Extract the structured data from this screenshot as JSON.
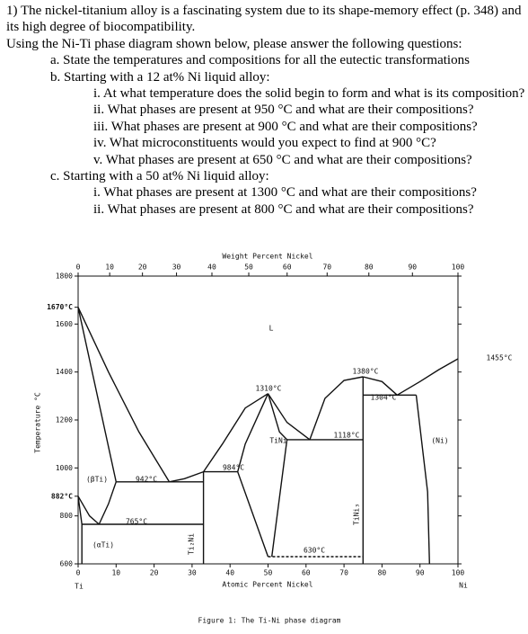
{
  "question": {
    "intro": "1) The nickel-titanium alloy is a fascinating system due to its shape-memory effect (p. 348) and its high degree of biocompatibility.",
    "instruction": "Using the Ni-Ti phase diagram shown below, please answer the following questions:",
    "parts": [
      {
        "text": "a. State the temperatures and compositions for all the eutectic transformations",
        "subparts": []
      },
      {
        "text": "b. Starting with a 12 at% Ni liquid alloy:",
        "subparts": [
          "i. At what temperature does the solid begin to form and what is its composition?",
          "ii. What phases are present at 950 °C and what are their compositions?",
          "iii. What phases are present at 900 °C and what are their compositions?",
          "iv. What microconstituents would you expect to find at 900 °C?",
          "v. What phases are present at 650 °C and what are their compositions?"
        ]
      },
      {
        "text": "c. Starting with a 50 at% Ni liquid alloy:",
        "subparts": [
          "i. What phases are present at 1300 °C and what are their compositions?",
          "ii. What phases are present at 800 °C and what are their compositions?"
        ]
      }
    ]
  },
  "figure": {
    "top_axis_label": "Weight Percent Nickel",
    "x_label": "Atomic Percent Nickel",
    "y_label": "Temperature °C",
    "axis_ends": [
      "Ti",
      "Ni"
    ],
    "caption": "Figure 1: The Ti-Ni phase diagram",
    "xlim": [
      0,
      100
    ],
    "ylim": [
      600,
      1800
    ],
    "xticks": [
      0,
      10,
      20,
      30,
      40,
      50,
      60,
      70,
      80,
      90,
      100
    ],
    "top_ticks": [
      0,
      10,
      20,
      30,
      40,
      50,
      60,
      70,
      80,
      90,
      100
    ],
    "yticks": [
      600,
      800,
      {
        "value": 882,
        "label": "882°C"
      },
      1000,
      1200,
      1400,
      1600,
      {
        "value": 1670,
        "label": "1670°C"
      },
      1800
    ],
    "labels": [
      "L",
      "(βTi)",
      "942°C",
      "765°C",
      "(αTi)",
      "Ti₂Ni",
      "984°C",
      "1310°C",
      "TiNi",
      "1118°C",
      "1380°C",
      "TiNi₃",
      "1304°C",
      "1455°C",
      "(Ni)",
      "630°C"
    ],
    "boundaries": [
      {
        "x": [
          0,
          8,
          16,
          24
        ],
        "y": [
          1670,
          1400,
          1150,
          942
        ]
      },
      {
        "x": [
          24,
          28,
          33
        ],
        "y": [
          942,
          955,
          984
        ]
      },
      {
        "x": [
          33,
          38,
          44,
          50
        ],
        "y": [
          984,
          1100,
          1250,
          1310
        ]
      },
      {
        "x": [
          50,
          55,
          61
        ],
        "y": [
          1310,
          1190,
          1118
        ]
      },
      {
        "x": [
          61,
          65,
          70,
          75
        ],
        "y": [
          1118,
          1290,
          1365,
          1380
        ]
      },
      {
        "x": [
          75,
          80,
          84
        ],
        "y": [
          1380,
          1360,
          1304
        ]
      },
      {
        "x": [
          84,
          90,
          95,
          100
        ],
        "y": [
          1304,
          1360,
          1410,
          1455
        ]
      },
      {
        "x": [
          0,
          10
        ],
        "y": [
          1670,
          942
        ]
      },
      {
        "x": [
          0,
          3,
          5.5
        ],
        "y": [
          882,
          800,
          765
        ]
      },
      {
        "x": [
          0,
          1,
          1
        ],
        "y": [
          882,
          765,
          600
        ]
      },
      {
        "x": [
          10,
          8,
          5.5
        ],
        "y": [
          942,
          850,
          765
        ]
      },
      {
        "x": [
          10,
          33
        ],
        "y": [
          942,
          942
        ]
      },
      {
        "x": [
          1,
          33
        ],
        "y": [
          765,
          765
        ]
      },
      {
        "x": [
          33,
          33
        ],
        "y": [
          984,
          600
        ]
      },
      {
        "x": [
          33,
          42
        ],
        "y": [
          984,
          984
        ]
      },
      {
        "x": [
          50,
          44,
          42,
          50
        ],
        "y": [
          1310,
          1100,
          984,
          630
        ]
      },
      {
        "x": [
          50,
          53,
          55,
          51
        ],
        "y": [
          1310,
          1150,
          1118,
          630
        ]
      },
      {
        "x": [
          55,
          75
        ],
        "y": [
          1118,
          1118
        ]
      },
      {
        "x": [
          75,
          75
        ],
        "y": [
          1380,
          600
        ]
      },
      {
        "x": [
          75,
          89
        ],
        "y": [
          1304,
          1304
        ]
      },
      {
        "x": [
          89,
          92,
          92.5
        ],
        "y": [
          1304,
          900,
          600
        ]
      },
      {
        "x": [
          50,
          75
        ],
        "y": [
          630,
          630
        ],
        "dashed": true
      }
    ]
  }
}
